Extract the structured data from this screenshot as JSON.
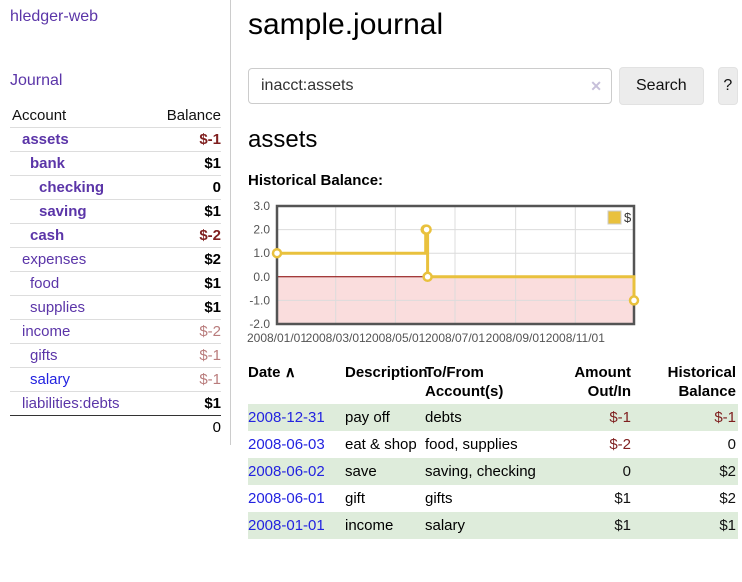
{
  "app": {
    "brand": "hledger-web",
    "nav": {
      "journal": "Journal"
    }
  },
  "sidebar": {
    "header": {
      "account": "Account",
      "balance": "Balance"
    },
    "accounts": [
      {
        "name": "assets",
        "balance": "$-1"
      },
      {
        "name": "bank",
        "balance": "$1"
      },
      {
        "name": "checking",
        "balance": "0"
      },
      {
        "name": "saving",
        "balance": "$1"
      },
      {
        "name": "cash",
        "balance": "$-2"
      },
      {
        "name": "expenses",
        "balance": "$2"
      },
      {
        "name": "food",
        "balance": "$1"
      },
      {
        "name": "supplies",
        "balance": "$1"
      },
      {
        "name": "income",
        "balance": "$-2"
      },
      {
        "name": "gifts",
        "balance": "$-1"
      },
      {
        "name": "salary",
        "balance": "$-1"
      },
      {
        "name": "liabilities:debts",
        "balance": "$1"
      }
    ],
    "total": "0"
  },
  "main": {
    "title": "sample.journal",
    "search": {
      "value": "inacct:assets",
      "clear_icon": "✕",
      "search_button": "Search",
      "help_button": "?"
    },
    "account_heading": "assets",
    "chart_heading": "Historical Balance:"
  },
  "chart_data": {
    "type": "line",
    "step": true,
    "title": "Historical Balance:",
    "series": [
      {
        "name": "$",
        "points": [
          [
            "2008-01-01",
            1
          ],
          [
            "2008-06-01",
            2
          ],
          [
            "2008-06-02",
            2
          ],
          [
            "2008-06-03",
            0
          ],
          [
            "2008-12-31",
            -1
          ]
        ]
      }
    ],
    "x_range": [
      "2008/01/01",
      "2008/12/31"
    ],
    "x_ticks": [
      "2008/01/01",
      "2008/03/01",
      "2008/05/01",
      "2008/07/01",
      "2008/09/01",
      "2008/11/01"
    ],
    "y_ticks": [
      3.0,
      2.0,
      1.0,
      0.0,
      -1.0,
      -2.0
    ],
    "y_tick_labels": [
      "3.0",
      "2.0",
      "1.0",
      "0.0",
      "-1.0",
      "-2.0"
    ],
    "ylim": [
      -2,
      3
    ],
    "grid": true,
    "legend_position": "top-right",
    "colors": {
      "line": "#e9c13d",
      "marker_fill": "#ffffff",
      "negative_region": "#fadddd",
      "zero_line": "#8b0000",
      "grid": "#dcdcdc",
      "border": "#545454",
      "axis_text": "#545454",
      "legend_box_border": "#cccccc"
    }
  },
  "register": {
    "headers": [
      "Date",
      "Description",
      "To/From Account(s)",
      "Amount Out/In",
      "Historical Balance"
    ],
    "sort_icon": "∧",
    "rows": [
      {
        "date": "2008-12-31",
        "description": "pay off",
        "accounts": "debts",
        "amount": "$-1",
        "balance": "$-1"
      },
      {
        "date": "2008-06-03",
        "description": "eat & shop",
        "accounts": "food, supplies",
        "amount": "$-2",
        "balance": "0"
      },
      {
        "date": "2008-06-02",
        "description": "save",
        "accounts": "saving, checking",
        "amount": "0",
        "balance": "$2"
      },
      {
        "date": "2008-06-01",
        "description": "gift",
        "accounts": "gifts",
        "amount": "$1",
        "balance": "$2"
      },
      {
        "date": "2008-01-01",
        "description": "income",
        "accounts": "salary",
        "amount": "$1",
        "balance": "$1"
      }
    ]
  }
}
